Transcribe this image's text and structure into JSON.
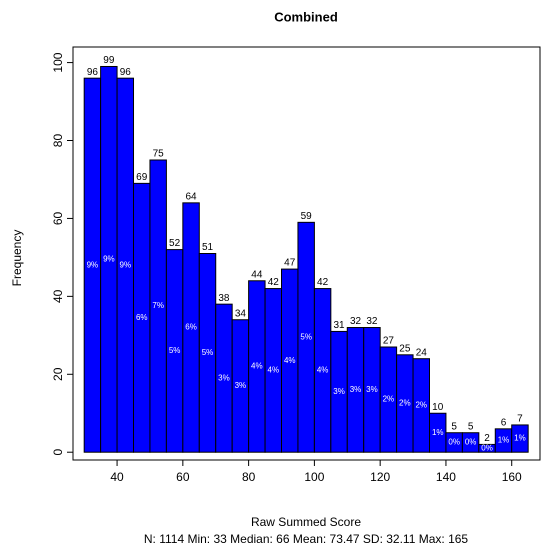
{
  "chart_data": {
    "type": "histogram",
    "title": "Combined",
    "x_label": "Raw Summed Score",
    "y_label": "Frequency",
    "note": "N: 1114 Min: 33  Median: 66  Mean: 73.47  SD: 32.11  Max: 165",
    "bins": [
      30,
      35,
      40,
      45,
      50,
      55,
      60,
      65,
      70,
      75,
      80,
      85,
      90,
      95,
      100,
      105,
      110,
      115,
      120,
      125,
      130,
      135,
      140,
      145,
      150,
      155,
      160,
      165
    ],
    "values": [
      96,
      99,
      96,
      69,
      75,
      52,
      64,
      51,
      38,
      34,
      44,
      42,
      47,
      59,
      42,
      31,
      32,
      32,
      27,
      25,
      24,
      10,
      5,
      5,
      2,
      6,
      7
    ],
    "percent_labels": [
      "9%",
      "9%",
      "9%",
      "6%",
      "7%",
      "5%",
      "6%",
      "5%",
      "3%",
      "3%",
      "4%",
      "4%",
      "4%",
      "5%",
      "4%",
      "3%",
      "3%",
      "3%",
      "2%",
      "2%",
      "2%",
      "1%",
      "0%",
      "0%",
      "0%",
      "1%",
      "1%"
    ],
    "color": "#0000ff",
    "xlim": [
      26.6,
      168.6
    ],
    "xticks": [
      40,
      60,
      80,
      100,
      120,
      140,
      160
    ],
    "ylim": [
      -2,
      104
    ],
    "yticks": [
      0,
      20,
      40,
      60,
      80,
      100
    ]
  }
}
